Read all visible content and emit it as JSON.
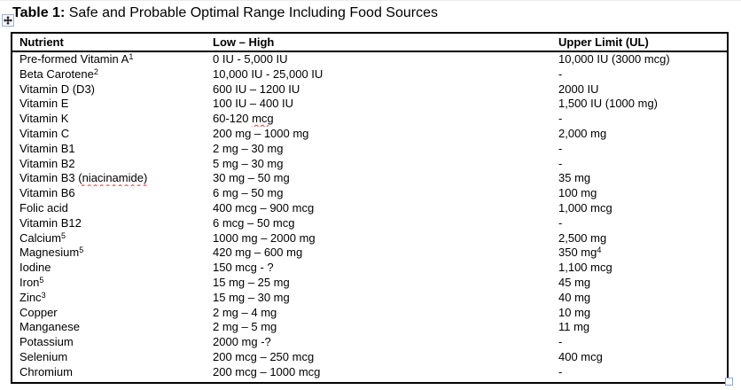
{
  "title": {
    "bold": "Table 1:",
    "rest": " Safe and Probable Optimal Range Including Food Sources"
  },
  "icons": {
    "move_handle": "table-move-handle",
    "resize_handle": "table-resize-handle"
  },
  "colors": {
    "table_border": "#000000",
    "spellcheck_squiggle": "#e03a2f",
    "handle_blue": "#85a9dc"
  },
  "table": {
    "headers": [
      "Nutrient",
      "Low – High",
      "Upper Limit (UL)"
    ],
    "rows": [
      {
        "nutrient": [
          {
            "t": "Pre-formed Vitamin A"
          },
          {
            "t": "1",
            "sup": true
          }
        ],
        "low_high": [
          {
            "t": "0 IU - 5,000 IU"
          }
        ],
        "upper": [
          {
            "t": "10,000 IU (3000 mcg)"
          }
        ]
      },
      {
        "nutrient": [
          {
            "t": "Beta Carotene"
          },
          {
            "t": "2",
            "sup": true
          }
        ],
        "low_high": [
          {
            "t": "10,000 IU - 25,000 IU"
          }
        ],
        "upper": [
          {
            "t": "-"
          }
        ]
      },
      {
        "nutrient": [
          {
            "t": "Vitamin D (D3)"
          }
        ],
        "low_high": [
          {
            "t": "600 IU – 1200 IU"
          }
        ],
        "upper": [
          {
            "t": "2000 IU"
          }
        ]
      },
      {
        "nutrient": [
          {
            "t": "Vitamin E"
          }
        ],
        "low_high": [
          {
            "t": "100 IU – 400 IU"
          }
        ],
        "upper": [
          {
            "t": "1,500 IU (1000 mg)"
          }
        ]
      },
      {
        "nutrient": [
          {
            "t": "Vitamin K"
          }
        ],
        "low_high": [
          {
            "t": "60-120 "
          },
          {
            "t": "mcg",
            "sq": true
          }
        ],
        "upper": [
          {
            "t": "-"
          }
        ]
      },
      {
        "nutrient": [
          {
            "t": "Vitamin C"
          }
        ],
        "low_high": [
          {
            "t": "200 mg – 1000 mg"
          }
        ],
        "upper": [
          {
            "t": "2,000 mg"
          }
        ]
      },
      {
        "nutrient": [
          {
            "t": "Vitamin B1"
          }
        ],
        "low_high": [
          {
            "t": "2 mg – 30 mg"
          }
        ],
        "upper": [
          {
            "t": "-"
          }
        ]
      },
      {
        "nutrient": [
          {
            "t": "Vitamin B2"
          }
        ],
        "low_high": [
          {
            "t": "5 mg – 30 mg"
          }
        ],
        "upper": [
          {
            "t": "-"
          }
        ]
      },
      {
        "nutrient": [
          {
            "t": "Vitamin B3 "
          },
          {
            "t": "(niacinamide)",
            "sq": true
          }
        ],
        "low_high": [
          {
            "t": "30 mg – 50 mg"
          }
        ],
        "upper": [
          {
            "t": "35 mg"
          }
        ]
      },
      {
        "nutrient": [
          {
            "t": "Vitamin B6"
          }
        ],
        "low_high": [
          {
            "t": "6 mg – 50 mg"
          }
        ],
        "upper": [
          {
            "t": "100 mg"
          }
        ]
      },
      {
        "nutrient": [
          {
            "t": "Folic acid"
          }
        ],
        "low_high": [
          {
            "t": "400 mcg – 900 mcg"
          }
        ],
        "upper": [
          {
            "t": "1,000 mcg"
          }
        ]
      },
      {
        "nutrient": [
          {
            "t": "Vitamin B12"
          }
        ],
        "low_high": [
          {
            "t": "6 mcg – 50 mcg"
          }
        ],
        "upper": [
          {
            "t": "-"
          }
        ]
      },
      {
        "nutrient": [
          {
            "t": "Calcium"
          },
          {
            "t": "5",
            "sup": true
          }
        ],
        "low_high": [
          {
            "t": "1000 mg – 2000 mg"
          }
        ],
        "upper": [
          {
            "t": "2,500 mg"
          }
        ]
      },
      {
        "nutrient": [
          {
            "t": "Magnesium"
          },
          {
            "t": "5",
            "sup": true
          }
        ],
        "low_high": [
          {
            "t": "420 mg – 600 mg"
          }
        ],
        "upper": [
          {
            "t": "350 mg"
          },
          {
            "t": "4",
            "sup": true
          }
        ]
      },
      {
        "nutrient": [
          {
            "t": "Iodine"
          }
        ],
        "low_high": [
          {
            "t": "150 mcg - ?"
          }
        ],
        "upper": [
          {
            "t": "1,100 mcg"
          }
        ]
      },
      {
        "nutrient": [
          {
            "t": "Iron"
          },
          {
            "t": "5",
            "sup": true
          }
        ],
        "low_high": [
          {
            "t": "15 mg – 25 mg"
          }
        ],
        "upper": [
          {
            "t": "45 mg"
          }
        ]
      },
      {
        "nutrient": [
          {
            "t": "Zinc"
          },
          {
            "t": "3",
            "sup": true
          }
        ],
        "low_high": [
          {
            "t": "15 mg – 30 mg"
          }
        ],
        "upper": [
          {
            "t": "40 mg"
          }
        ]
      },
      {
        "nutrient": [
          {
            "t": "Copper"
          }
        ],
        "low_high": [
          {
            "t": "2 mg – 4 mg"
          }
        ],
        "upper": [
          {
            "t": "10 mg"
          }
        ]
      },
      {
        "nutrient": [
          {
            "t": "Manganese"
          }
        ],
        "low_high": [
          {
            "t": "2 mg – 5 mg"
          }
        ],
        "upper": [
          {
            "t": "11 mg"
          }
        ]
      },
      {
        "nutrient": [
          {
            "t": "Potassium"
          }
        ],
        "low_high": [
          {
            "t": "2000 mg -?"
          }
        ],
        "upper": [
          {
            "t": "-"
          }
        ]
      },
      {
        "nutrient": [
          {
            "t": "Selenium"
          }
        ],
        "low_high": [
          {
            "t": "200 mcg – 250 mcg"
          }
        ],
        "upper": [
          {
            "t": "400 mcg"
          }
        ]
      },
      {
        "nutrient": [
          {
            "t": "Chromium"
          }
        ],
        "low_high": [
          {
            "t": "200 mcg – 1000 mcg"
          }
        ],
        "upper": [
          {
            "t": "-"
          }
        ]
      }
    ]
  }
}
